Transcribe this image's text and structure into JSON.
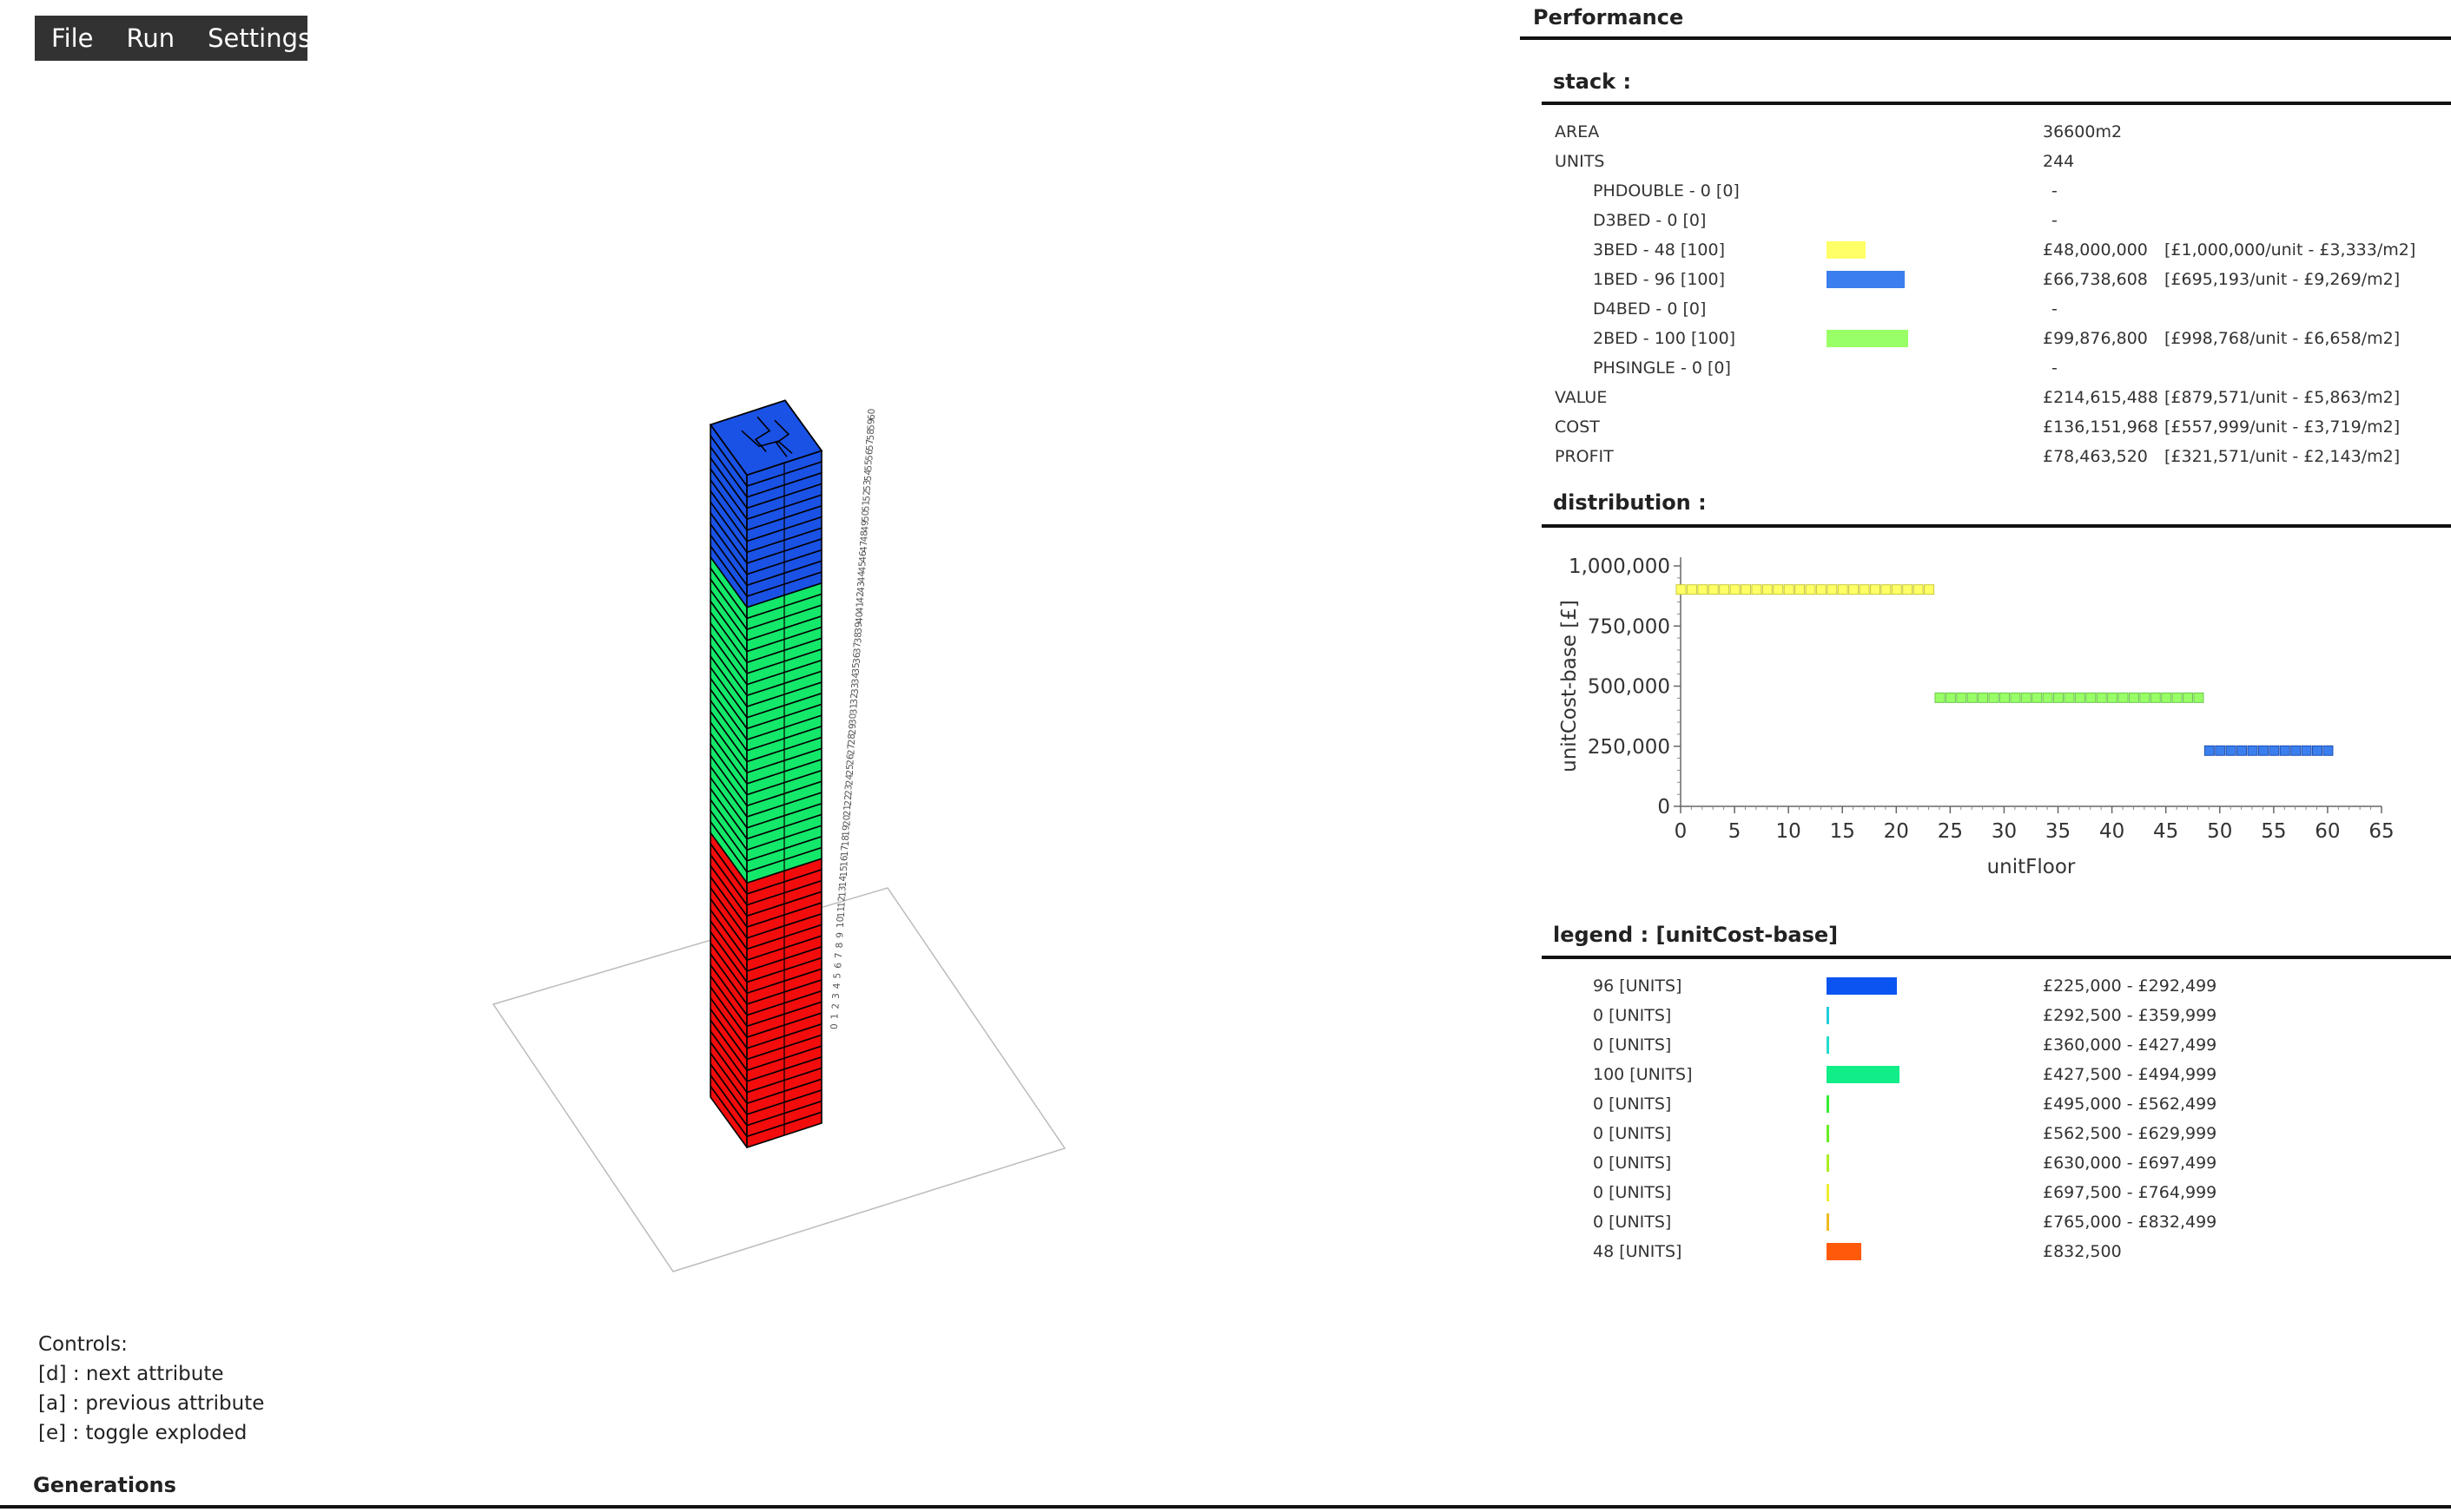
{
  "menu": {
    "items": [
      "File",
      "Run",
      "Settings"
    ]
  },
  "viewport": {
    "floor_labels": [
      "0",
      "1",
      "2",
      "3",
      "4",
      "5",
      "6",
      "7",
      "8",
      "9",
      "10",
      "11",
      "12",
      "13",
      "14",
      "15",
      "16",
      "17",
      "18",
      "19",
      "20",
      "21",
      "22",
      "23",
      "24",
      "25",
      "26",
      "27",
      "28",
      "29",
      "30",
      "31",
      "32",
      "33",
      "34",
      "35",
      "36",
      "37",
      "38",
      "39",
      "40",
      "41",
      "42",
      "43",
      "44",
      "45",
      "46",
      "47",
      "48",
      "49",
      "50",
      "51",
      "52",
      "53",
      "54",
      "55",
      "56",
      "57",
      "58",
      "59",
      "60"
    ],
    "colors": {
      "top": "#1a52e6",
      "middle": "#14e86a",
      "bottom": "#f20c0c",
      "outline": "#000000",
      "ground": "#bbbbbb"
    }
  },
  "controls": {
    "title": "Controls:",
    "lines": [
      "[d] : next attribute",
      "[a] : previous attribute",
      "[e] : toggle exploded"
    ]
  },
  "generations": {
    "title": "Generations"
  },
  "performance": {
    "title": "Performance",
    "stack": {
      "title": "stack :",
      "area_label": "AREA",
      "area_value": "36600m2",
      "units_label": "UNITS",
      "units_value": "244",
      "types": [
        {
          "label": "PHDOUBLE - 0 [0]",
          "value": "-",
          "detail": "",
          "bar_color": "",
          "bar_fraction": 0
        },
        {
          "label": "D3BED - 0 [0]",
          "value": "-",
          "detail": "",
          "bar_color": "",
          "bar_fraction": 0
        },
        {
          "label": "3BED - 48 [100]",
          "value": "£48,000,000",
          "detail": "[£1,000,000/unit - £3,333/m2]",
          "bar_color": "#ffff66",
          "bar_fraction": 0.48
        },
        {
          "label": "1BED - 96 [100]",
          "value": "£66,738,608",
          "detail": "[£695,193/unit - £9,269/m2]",
          "bar_color": "#3b7fef",
          "bar_fraction": 0.96
        },
        {
          "label": "D4BED - 0 [0]",
          "value": "-",
          "detail": "",
          "bar_color": "",
          "bar_fraction": 0
        },
        {
          "label": "2BED - 100 [100]",
          "value": "£99,876,800",
          "detail": "[£998,768/unit - £6,658/m2]",
          "bar_color": "#99ff66",
          "bar_fraction": 1.0
        },
        {
          "label": "PHSINGLE - 0 [0]",
          "value": "-",
          "detail": "",
          "bar_color": "",
          "bar_fraction": 0
        }
      ],
      "value_label": "VALUE",
      "value_value": "£214,615,488",
      "value_detail": "[£879,571/unit - £5,863/m2]",
      "cost_label": "COST",
      "cost_value": "£136,151,968",
      "cost_detail": "[£557,999/unit - £3,719/m2]",
      "profit_label": "PROFIT",
      "profit_value": "£78,463,520",
      "profit_detail": "[£321,571/unit - £2,143/m2]"
    },
    "distribution": {
      "title": "distribution :"
    },
    "legend": {
      "title": "legend : [unitCost-base]",
      "rows": [
        {
          "label": "96 [UNITS]",
          "range": "£225,000 - £292,499",
          "color": "#0a55f2",
          "count": 96
        },
        {
          "label": "0 [UNITS]",
          "range": "£292,500 - £359,999",
          "color": "#22ccdd",
          "count": 0
        },
        {
          "label": "0 [UNITS]",
          "range": "£360,000 - £427,499",
          "color": "#22ddcc",
          "count": 0
        },
        {
          "label": "100 [UNITS]",
          "range": "£427,500 - £494,999",
          "color": "#11ee88",
          "count": 100
        },
        {
          "label": "0 [UNITS]",
          "range": "£495,000 - £562,499",
          "color": "#33ee33",
          "count": 0
        },
        {
          "label": "0 [UNITS]",
          "range": "£562,500 - £629,999",
          "color": "#66ee22",
          "count": 0
        },
        {
          "label": "0 [UNITS]",
          "range": "£630,000 - £697,499",
          "color": "#aaee22",
          "count": 0
        },
        {
          "label": "0 [UNITS]",
          "range": "£697,500 - £764,999",
          "color": "#eeee33",
          "count": 0
        },
        {
          "label": "0 [UNITS]",
          "range": "£765,000 - £832,499",
          "color": "#eebb22",
          "count": 0
        },
        {
          "label": "48 [UNITS]",
          "range": "£832,500",
          "color": "#ff5a0a",
          "count": 48
        }
      ]
    }
  },
  "chart_data": {
    "type": "scatter",
    "title": "",
    "xlabel": "unitFloor",
    "ylabel": "unitCost-base [£]",
    "xlim": [
      0,
      65
    ],
    "ylim": [
      0,
      1000000
    ],
    "x_ticks": [
      0,
      5,
      10,
      15,
      20,
      25,
      30,
      35,
      40,
      45,
      50,
      55,
      60,
      65
    ],
    "y_ticks": [
      0,
      250000,
      500000,
      750000,
      1000000
    ],
    "x_tick_labels": [
      "0",
      "5",
      "10",
      "15",
      "20",
      "25",
      "30",
      "35",
      "40",
      "45",
      "50",
      "55",
      "60",
      "65"
    ],
    "y_tick_labels": [
      "0",
      "250,000",
      "500,000",
      "750,000",
      "1,000,000"
    ],
    "grid": false,
    "series": [
      {
        "color": "#ffff66",
        "x": [
          0,
          1,
          2,
          3,
          4,
          5,
          6,
          7,
          8,
          9,
          10,
          11,
          12,
          13,
          14,
          15,
          16,
          17,
          18,
          19,
          20,
          21,
          22,
          23
        ],
        "y": [
          900000,
          900000,
          900000,
          900000,
          900000,
          900000,
          900000,
          900000,
          900000,
          900000,
          900000,
          900000,
          900000,
          900000,
          900000,
          900000,
          900000,
          900000,
          900000,
          900000,
          900000,
          900000,
          900000,
          900000
        ]
      },
      {
        "color": "#99ff66",
        "x": [
          24,
          25,
          26,
          27,
          28,
          29,
          30,
          31,
          32,
          33,
          34,
          35,
          36,
          37,
          38,
          39,
          40,
          41,
          42,
          43,
          44,
          45,
          46,
          47,
          48
        ],
        "y": [
          450000,
          450000,
          450000,
          450000,
          450000,
          450000,
          450000,
          450000,
          450000,
          450000,
          450000,
          450000,
          450000,
          450000,
          450000,
          450000,
          450000,
          450000,
          450000,
          450000,
          450000,
          450000,
          450000,
          450000,
          450000
        ]
      },
      {
        "color": "#3b7fef",
        "x": [
          49,
          50,
          51,
          52,
          53,
          54,
          55,
          56,
          57,
          58,
          59,
          60
        ],
        "y": [
          230000,
          230000,
          230000,
          230000,
          230000,
          230000,
          230000,
          230000,
          230000,
          230000,
          230000,
          230000
        ]
      }
    ]
  }
}
